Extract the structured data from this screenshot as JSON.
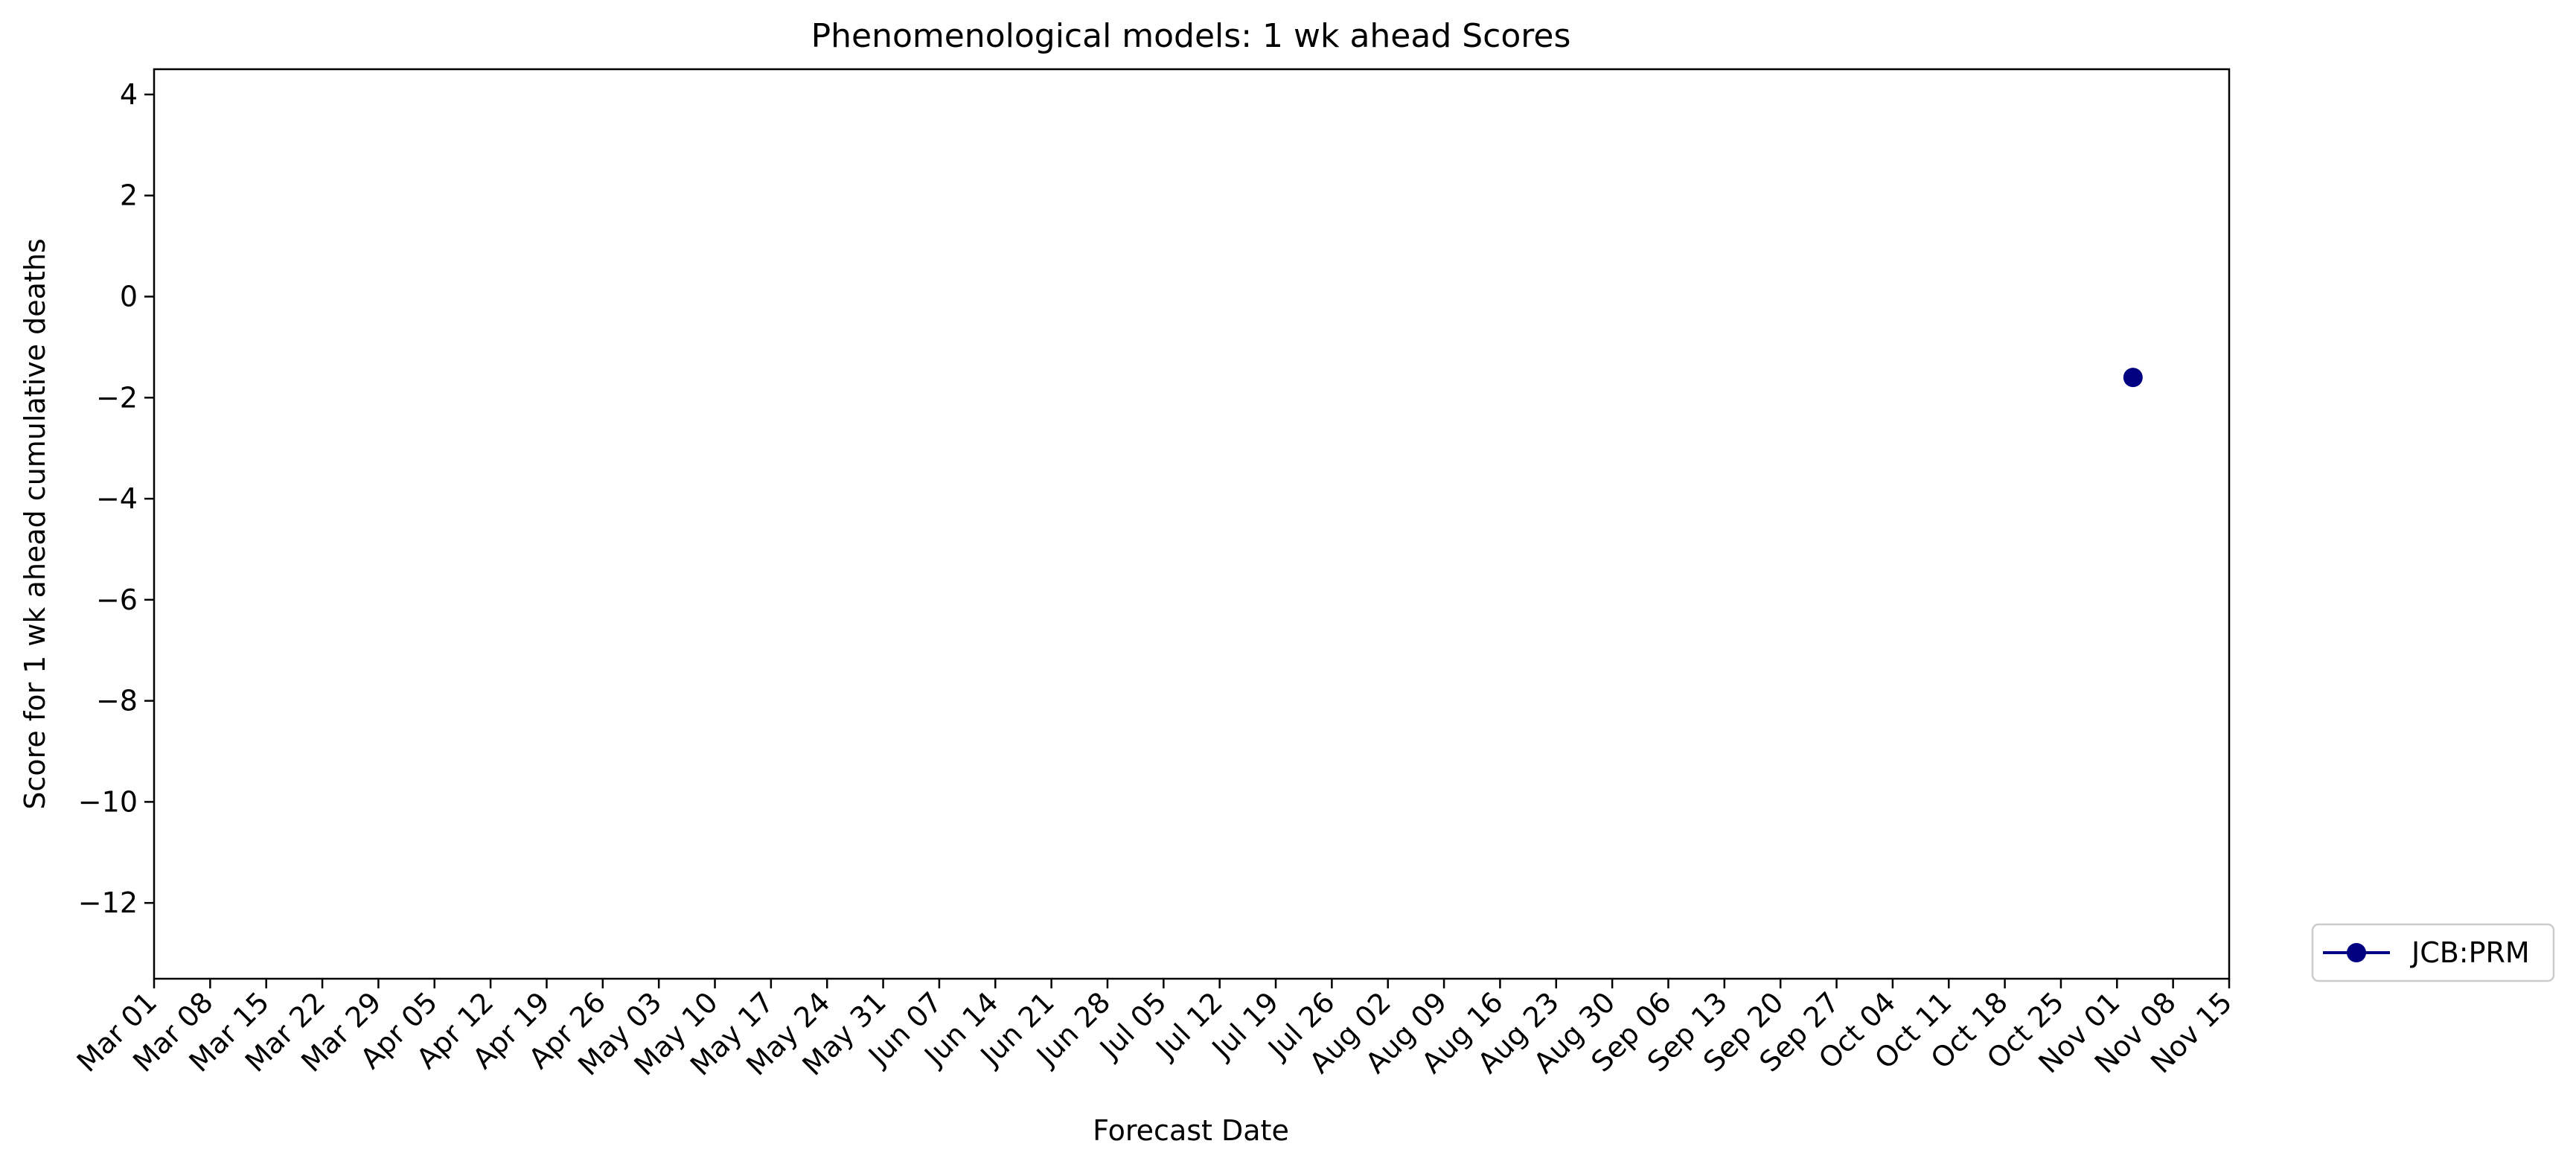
{
  "chart_data": {
    "type": "scatter",
    "title": "Phenomenological models: 1 wk ahead Scores",
    "xlabel": "Forecast Date",
    "ylabel": "Score for 1 wk ahead cumulative deaths",
    "x_tick_labels": [
      "Mar 01",
      "Mar 08",
      "Mar 15",
      "Mar 22",
      "Mar 29",
      "Apr 05",
      "Apr 12",
      "Apr 19",
      "Apr 26",
      "May 03",
      "May 10",
      "May 17",
      "May 24",
      "May 31",
      "Jun 07",
      "Jun 14",
      "Jun 21",
      "Jun 28",
      "Jul 05",
      "Jul 12",
      "Jul 19",
      "Jul 26",
      "Aug 02",
      "Aug 09",
      "Aug 16",
      "Aug 23",
      "Aug 30",
      "Sep 06",
      "Sep 13",
      "Sep 20",
      "Sep 27",
      "Oct 04",
      "Oct 11",
      "Oct 18",
      "Oct 25",
      "Nov 01",
      "Nov 08",
      "Nov 15"
    ],
    "y_ticks": [
      4,
      2,
      0,
      -2,
      -4,
      -6,
      -8,
      -10,
      -12
    ],
    "xlim": [
      "Mar 01",
      "Nov 15"
    ],
    "ylim": [
      -13.5,
      4.5
    ],
    "grid": false,
    "legend_position": "outside-bottom-right",
    "series": [
      {
        "name": "JCB:PRM",
        "color": "#000080",
        "marker": "circle",
        "points": [
          {
            "x": "Nov 03",
            "y": -1.6
          }
        ]
      }
    ]
  }
}
